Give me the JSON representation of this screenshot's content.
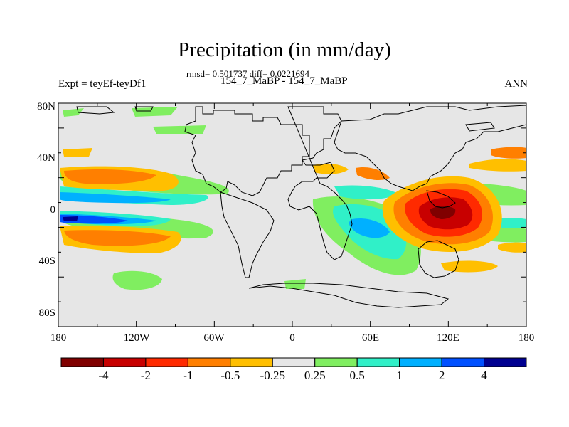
{
  "figure": {
    "title": "Precipitation (in mm/day)",
    "stats": "rmsd= 0.501737 diff= 0.0221694",
    "case_label": "154_7_MaBP - 154_7_MaBP",
    "experiment": "Expt = teyEf-teyDf1",
    "season": "ANN"
  },
  "map": {
    "lat_labels": [
      "80N",
      "40N",
      "0",
      "40S",
      "80S"
    ],
    "lon_labels": [
      "180",
      "120W",
      "60W",
      "0",
      "60E",
      "120E",
      "180"
    ]
  },
  "colorbar": {
    "labels": [
      "-4",
      "-2",
      "-1",
      "-0.5",
      "-0.25",
      "0.25",
      "0.5",
      "1",
      "2",
      "4"
    ],
    "colors": [
      "#800000",
      "#c80000",
      "#ff2a00",
      "#ff7f00",
      "#ffbf00",
      "#e6e6e6",
      "#80ee60",
      "#30f0c8",
      "#00b0ff",
      "#0050ff",
      "#000090"
    ]
  }
}
